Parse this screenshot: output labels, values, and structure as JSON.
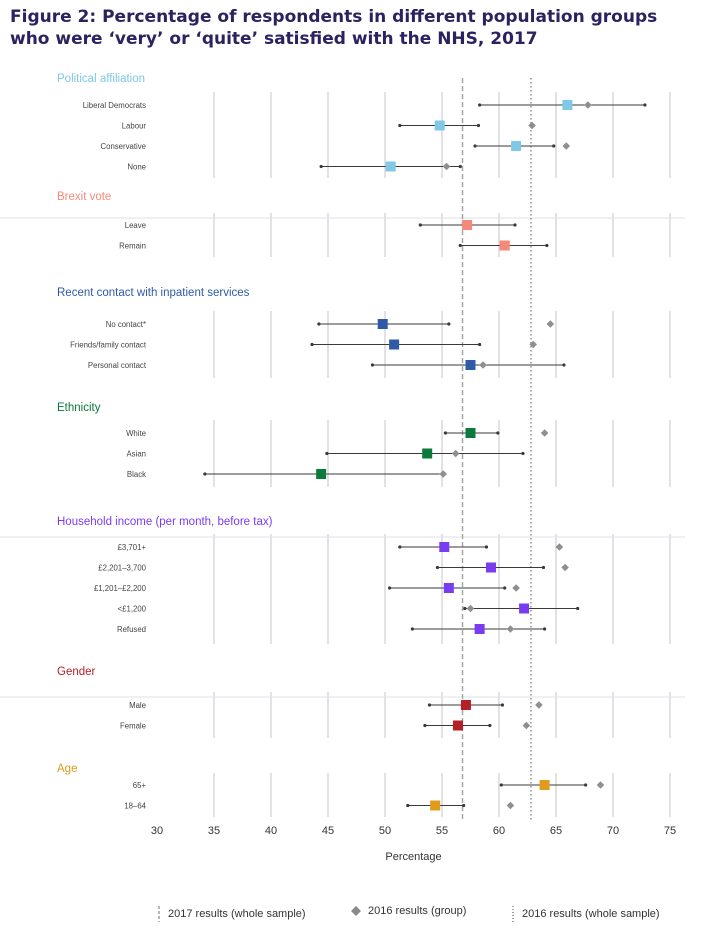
{
  "title": "Figure 2: Percentage of respondents in different population groups who were ‘very’ or ‘quite’ satisfied with the NHS, 2017",
  "chart_data": {
    "type": "dot-range",
    "title": "Figure 2: Percentage of respondents in different population groups who were ‘very’ or ‘quite’ satisfied with the NHS, 2017",
    "xlabel": "Percentage",
    "xlim": [
      30,
      75
    ],
    "xticks": [
      30,
      35,
      40,
      45,
      50,
      55,
      60,
      65,
      70,
      75
    ],
    "reference_lines": {
      "whole_sample_2017": 56.8,
      "whole_sample_2016": 62.8
    },
    "groups": [
      {
        "name": "Political affiliation",
        "color": "#7fc8e6",
        "rows": [
          {
            "label": "Liberal Democrats",
            "value_2017": 66.0,
            "ci_low": 58.3,
            "ci_high": 72.8,
            "value_2016": 67.8
          },
          {
            "label": "Labour",
            "value_2017": 54.8,
            "ci_low": 51.3,
            "ci_high": 58.2,
            "value_2016": 62.9
          },
          {
            "label": "Conservative",
            "value_2017": 61.5,
            "ci_low": 57.9,
            "ci_high": 64.8,
            "value_2016": 65.9
          },
          {
            "label": "None",
            "value_2017": 50.5,
            "ci_low": 44.4,
            "ci_high": 56.6,
            "value_2016": 55.4
          }
        ]
      },
      {
        "name": "Brexit vote",
        "color": "#f58a7a",
        "rows": [
          {
            "label": "Leave",
            "value_2017": 57.2,
            "ci_low": 53.1,
            "ci_high": 61.4,
            "value_2016": null
          },
          {
            "label": "Remain",
            "value_2017": 60.5,
            "ci_low": 56.6,
            "ci_high": 64.2,
            "value_2016": null
          }
        ]
      },
      {
        "name": "Recent contact with inpatient services",
        "color": "#2e5aa8",
        "rows": [
          {
            "label": "No contact*",
            "value_2017": 49.8,
            "ci_low": 44.2,
            "ci_high": 55.6,
            "value_2016": 64.5
          },
          {
            "label": "Friends/family contact",
            "value_2017": 50.8,
            "ci_low": 43.6,
            "ci_high": 58.3,
            "value_2016": 63.0
          },
          {
            "label": "Personal contact",
            "value_2017": 57.5,
            "ci_low": 48.9,
            "ci_high": 65.7,
            "value_2016": 58.6
          }
        ]
      },
      {
        "name": "Ethnicity",
        "color": "#0b7a3b",
        "rows": [
          {
            "label": "White",
            "value_2017": 57.5,
            "ci_low": 55.3,
            "ci_high": 59.9,
            "value_2016": 64.0
          },
          {
            "label": "Asian",
            "value_2017": 53.7,
            "ci_low": 44.9,
            "ci_high": 62.1,
            "value_2016": 56.2
          },
          {
            "label": "Black",
            "value_2017": 44.4,
            "ci_low": 34.2,
            "ci_high": 55.1,
            "value_2016": 55.1
          }
        ]
      },
      {
        "name": "Household income (per month, before tax)",
        "color": "#7a3cf0",
        "rows": [
          {
            "label": "£3,701+",
            "value_2017": 55.2,
            "ci_low": 51.3,
            "ci_high": 58.9,
            "value_2016": 65.3
          },
          {
            "label": "£2,201–3,700",
            "value_2017": 59.3,
            "ci_low": 54.6,
            "ci_high": 63.9,
            "value_2016": 65.8
          },
          {
            "label": "£1,201–£2,200",
            "value_2017": 55.6,
            "ci_low": 50.4,
            "ci_high": 60.5,
            "value_2016": 61.5
          },
          {
            "label": "<£1,200",
            "value_2017": 62.2,
            "ci_low": 57.0,
            "ci_high": 66.9,
            "value_2016": 57.5
          },
          {
            "label": "Refused",
            "value_2017": 58.3,
            "ci_low": 52.4,
            "ci_high": 64.0,
            "value_2016": 61.0
          }
        ]
      },
      {
        "name": "Gender",
        "color": "#b52026",
        "rows": [
          {
            "label": "Male",
            "value_2017": 57.1,
            "ci_low": 53.9,
            "ci_high": 60.3,
            "value_2016": 63.5
          },
          {
            "label": "Female",
            "value_2017": 56.4,
            "ci_low": 53.5,
            "ci_high": 59.2,
            "value_2016": 62.4
          }
        ]
      },
      {
        "name": "Age",
        "color": "#e09a1c",
        "rows": [
          {
            "label": "65+",
            "value_2017": 64.0,
            "ci_low": 60.2,
            "ci_high": 67.6,
            "value_2016": 68.9
          },
          {
            "label": "18–64",
            "value_2017": 54.4,
            "ci_low": 52.0,
            "ci_high": 56.9,
            "value_2016": 61.0
          }
        ]
      }
    ],
    "legend": {
      "line_2017": "2017 results (whole sample)",
      "diamond_2016": "2016 results (group)",
      "line_2016": "2016 results (whole sample)"
    }
  }
}
